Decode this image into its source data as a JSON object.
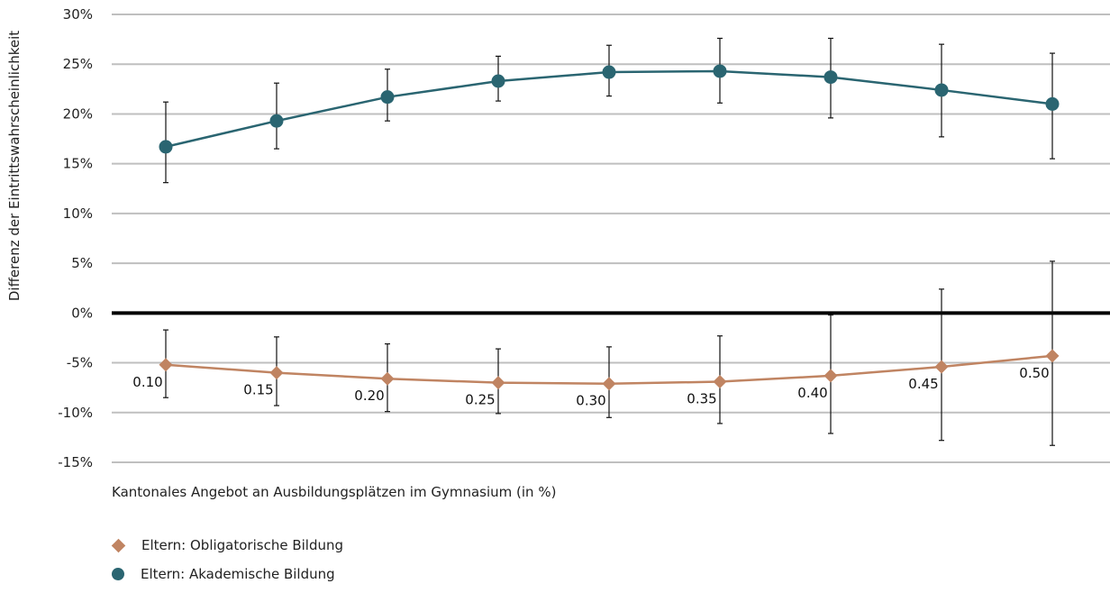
{
  "chart_data": {
    "type": "line",
    "title": "",
    "xlabel": "Kantonales Angebot an Ausbildungsplätzen im Gymnasium (in %)",
    "ylabel": "Differenz der Eintrittswahrscheinlichkeit",
    "categories": [
      "0.10",
      "0.15",
      "0.20",
      "0.25",
      "0.30",
      "0.35",
      "0.40",
      "0.45",
      "0.50"
    ],
    "ylim": [
      -15,
      30
    ],
    "yticks": [
      30,
      25,
      20,
      15,
      10,
      5,
      0,
      -5,
      -10,
      -15
    ],
    "ytick_labels": [
      "30%",
      "25%",
      "20%",
      "15%",
      "10%",
      "5%",
      "0%",
      "-5%",
      "-10%",
      "-15%"
    ],
    "grid": true,
    "legend_position": "bottom-left",
    "series": [
      {
        "name": "Eltern: Obligatorische Bildung",
        "marker": "diamond",
        "color": "#c08462",
        "values": [
          -5.2,
          -6.0,
          -6.6,
          -7.0,
          -7.1,
          -6.9,
          -6.3,
          -5.4,
          -4.3
        ],
        "lower": [
          -8.5,
          -9.3,
          -9.9,
          -10.1,
          -10.5,
          -11.1,
          -12.1,
          -12.8,
          -13.3
        ],
        "upper": [
          -1.7,
          -2.4,
          -3.1,
          -3.6,
          -3.4,
          -2.3,
          -0.2,
          2.4,
          5.2
        ]
      },
      {
        "name": "Eltern: Akademische Bildung",
        "marker": "circle",
        "color": "#2a6571",
        "values": [
          16.7,
          19.3,
          21.7,
          23.3,
          24.2,
          24.3,
          23.7,
          22.4,
          21.0
        ],
        "lower": [
          13.1,
          16.5,
          19.3,
          21.3,
          21.8,
          21.1,
          19.6,
          17.7,
          15.5
        ],
        "upper": [
          21.2,
          23.1,
          24.5,
          25.8,
          26.9,
          27.6,
          27.6,
          27.0,
          26.1
        ]
      }
    ]
  },
  "colors": {
    "grid": "#bfbfbf",
    "zero_line": "#000000",
    "error_bar": "#111111"
  }
}
